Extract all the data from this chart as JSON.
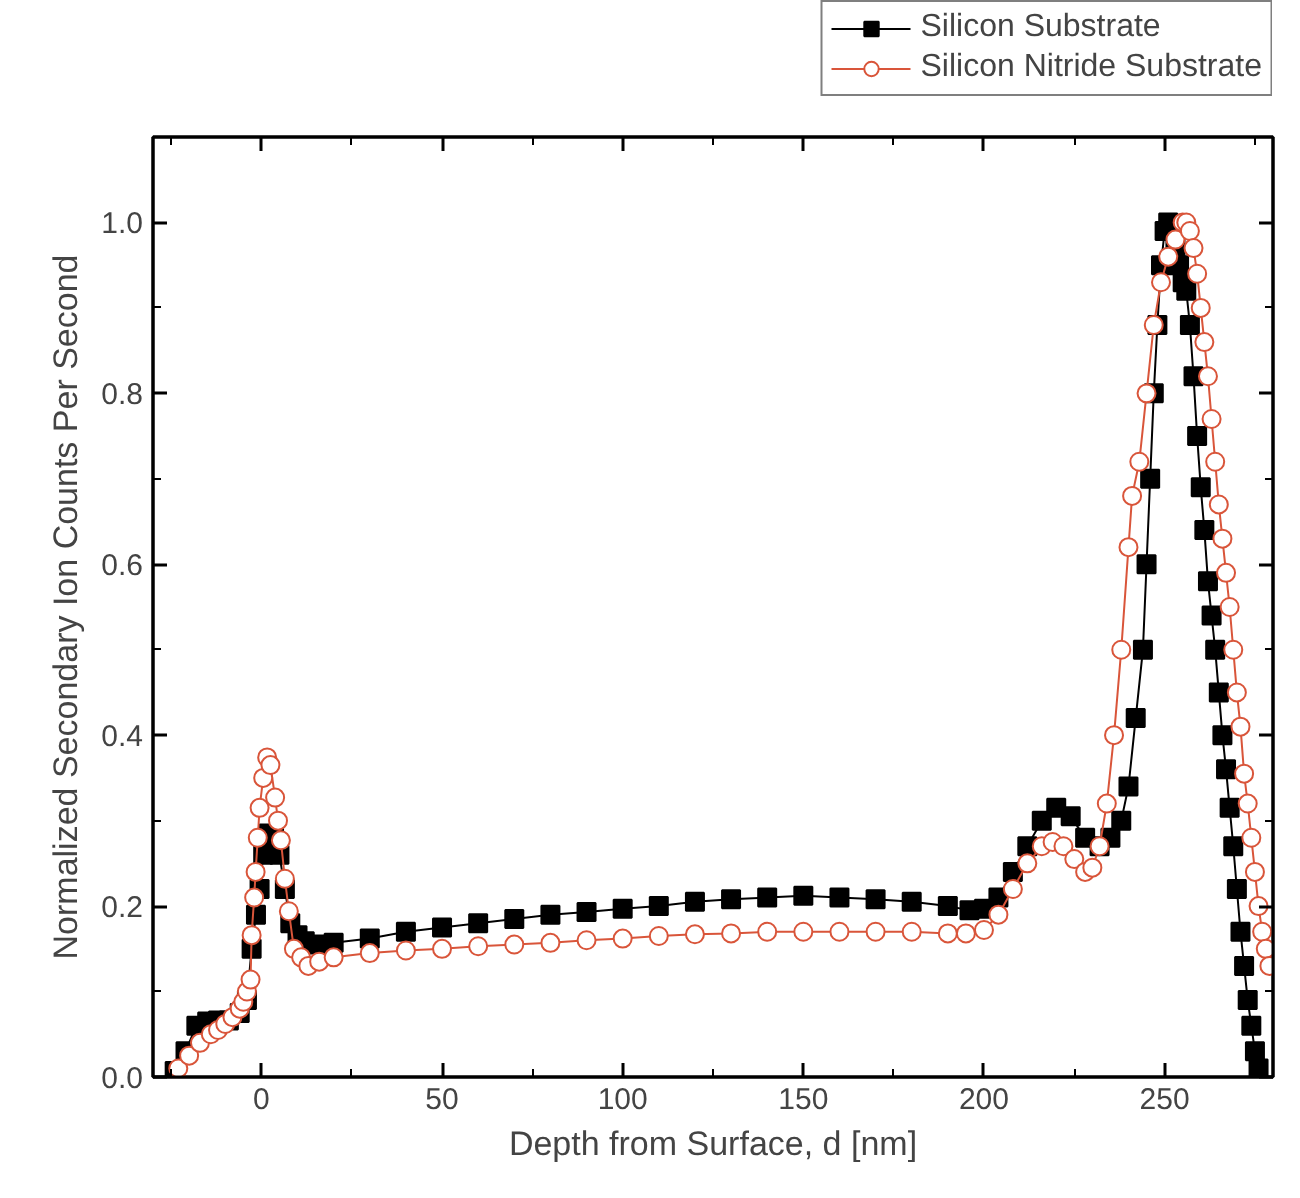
{
  "chart_data": {
    "type": "line",
    "xlabel": "Depth from Surface, d [nm]",
    "ylabel": "Normalized Secondary Ion Counts Per Second",
    "xlim": [
      -30,
      280
    ],
    "ylim": [
      0,
      1.1
    ],
    "xticks": [
      0,
      50,
      100,
      150,
      200,
      250
    ],
    "yticks": [
      {
        "value": 0,
        "label": "0.0"
      },
      {
        "value": 0.2,
        "label": "0.2"
      },
      {
        "value": 0.4,
        "label": "0.4"
      },
      {
        "value": 0.6,
        "label": "0.6"
      },
      {
        "value": 0.8,
        "label": "0.8"
      },
      {
        "value": 1.0,
        "label": "1.0"
      }
    ],
    "grid": false,
    "legend": "top right",
    "line_style": "solid",
    "series": [
      {
        "name": "Silicon Substrate",
        "color": "#000000",
        "marker": "square",
        "x": [
          -24,
          -21,
          -18,
          -15,
          -12,
          -9,
          -6,
          -4,
          -2.7,
          -1.5,
          -0.5,
          0.5,
          2,
          3.5,
          5,
          6.5,
          8,
          10,
          12,
          15,
          20,
          30,
          40,
          50,
          60,
          70,
          80,
          90,
          100,
          110,
          120,
          130,
          140,
          150,
          160,
          170,
          180,
          190,
          196,
          200,
          204,
          208,
          212,
          216,
          220,
          224,
          228,
          232,
          235,
          238,
          240,
          242,
          244,
          245,
          246,
          247,
          248,
          249,
          250,
          251,
          252,
          253,
          254,
          255,
          256,
          257,
          258,
          259,
          260,
          261,
          262,
          263,
          264,
          265,
          266,
          267,
          268,
          269,
          270,
          271,
          272,
          273,
          274,
          275,
          276
        ],
        "values": [
          0.007,
          0.03,
          0.06,
          0.065,
          0.066,
          0.066,
          0.075,
          0.09,
          0.15,
          0.19,
          0.22,
          0.26,
          0.285,
          0.28,
          0.26,
          0.22,
          0.18,
          0.166,
          0.159,
          0.155,
          0.157,
          0.162,
          0.17,
          0.175,
          0.18,
          0.185,
          0.19,
          0.193,
          0.197,
          0.2,
          0.205,
          0.208,
          0.21,
          0.212,
          0.21,
          0.208,
          0.205,
          0.2,
          0.195,
          0.197,
          0.21,
          0.24,
          0.27,
          0.3,
          0.315,
          0.305,
          0.28,
          0.27,
          0.28,
          0.3,
          0.34,
          0.42,
          0.5,
          0.6,
          0.7,
          0.8,
          0.88,
          0.95,
          0.99,
          1.0,
          0.99,
          0.97,
          0.95,
          0.93,
          0.92,
          0.88,
          0.82,
          0.75,
          0.69,
          0.64,
          0.58,
          0.54,
          0.5,
          0.45,
          0.4,
          0.36,
          0.315,
          0.27,
          0.22,
          0.17,
          0.13,
          0.09,
          0.06,
          0.03,
          0.01
        ]
      },
      {
        "name": "Silicon Nitride Substrate",
        "color": "#d9553a",
        "marker": "circle",
        "x": [
          -23,
          -20,
          -17,
          -14,
          -12,
          -10,
          -8,
          -6,
          -5,
          -4,
          -3,
          -2.7,
          -2,
          -1.6,
          -1,
          -0.5,
          0.5,
          1.6,
          2.5,
          3.8,
          4.6,
          5.4,
          6.5,
          7.6,
          9,
          11,
          13,
          16,
          20,
          30,
          40,
          50,
          60,
          70,
          80,
          90,
          100,
          110,
          120,
          130,
          140,
          150,
          160,
          170,
          180,
          190,
          195,
          200,
          204,
          208,
          212,
          216,
          219,
          222,
          225,
          228,
          230,
          232,
          234,
          236,
          238,
          240,
          241,
          243,
          245,
          247,
          249,
          251,
          253,
          255,
          256,
          257,
          258,
          259,
          260,
          261,
          262,
          263,
          264,
          265,
          266,
          267,
          268,
          269,
          270,
          271,
          272,
          273,
          274,
          275,
          276,
          277,
          278,
          279
        ],
        "values": [
          0.01,
          0.025,
          0.04,
          0.05,
          0.055,
          0.062,
          0.07,
          0.08,
          0.088,
          0.1,
          0.114,
          0.166,
          0.21,
          0.24,
          0.28,
          0.315,
          0.35,
          0.374,
          0.365,
          0.327,
          0.3,
          0.277,
          0.232,
          0.194,
          0.15,
          0.14,
          0.13,
          0.135,
          0.14,
          0.145,
          0.148,
          0.15,
          0.153,
          0.155,
          0.157,
          0.16,
          0.162,
          0.165,
          0.167,
          0.168,
          0.17,
          0.17,
          0.17,
          0.17,
          0.17,
          0.168,
          0.168,
          0.172,
          0.19,
          0.22,
          0.25,
          0.27,
          0.275,
          0.27,
          0.255,
          0.24,
          0.245,
          0.27,
          0.32,
          0.4,
          0.5,
          0.62,
          0.68,
          0.72,
          0.8,
          0.88,
          0.93,
          0.96,
          0.98,
          1.0,
          1.0,
          0.99,
          0.97,
          0.94,
          0.9,
          0.86,
          0.82,
          0.77,
          0.72,
          0.67,
          0.63,
          0.59,
          0.55,
          0.5,
          0.45,
          0.41,
          0.355,
          0.32,
          0.28,
          0.24,
          0.2,
          0.17,
          0.15,
          0.13
        ]
      }
    ]
  }
}
